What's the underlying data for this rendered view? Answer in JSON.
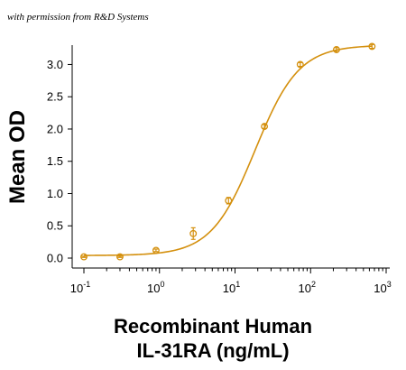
{
  "credit": "with permission from R&D Systems",
  "chart_data": {
    "type": "scatter",
    "title": "",
    "xlabel_lines": [
      "Recombinant Human",
      "IL-31RA (ng/mL)"
    ],
    "ylabel": "Mean OD",
    "x_scale": "log",
    "xlim": [
      0.1,
      1000
    ],
    "ylim": [
      0,
      3.3
    ],
    "x_ticks": [
      {
        "value": 0.1,
        "base": "10",
        "exp": "-1"
      },
      {
        "value": 1,
        "base": "10",
        "exp": "0"
      },
      {
        "value": 10,
        "base": "10",
        "exp": "1"
      },
      {
        "value": 100,
        "base": "10",
        "exp": "2"
      },
      {
        "value": 1000,
        "base": "10",
        "exp": "3"
      }
    ],
    "y_ticks": [
      "0.0",
      "0.5",
      "1.0",
      "1.5",
      "2.0",
      "2.5",
      "3.0"
    ],
    "series": [
      {
        "color": "#D4900E",
        "points": [
          {
            "x": 0.1,
            "y": 0.02,
            "err": 0.01
          },
          {
            "x": 0.3,
            "y": 0.02,
            "err": 0.01
          },
          {
            "x": 0.9,
            "y": 0.12,
            "err": 0.02
          },
          {
            "x": 2.8,
            "y": 0.38,
            "err": 0.09
          },
          {
            "x": 8.2,
            "y": 0.89,
            "err": 0.05
          },
          {
            "x": 24.5,
            "y": 2.04,
            "err": 0.03
          },
          {
            "x": 73,
            "y": 3.0,
            "err": 0.03
          },
          {
            "x": 220,
            "y": 3.23,
            "err": 0.03
          },
          {
            "x": 650,
            "y": 3.28,
            "err": 0.03
          }
        ],
        "fit": {
          "model": "4PL",
          "bottom": 0.04,
          "top": 3.3,
          "ec50": 18.4,
          "hill": 1.5
        }
      }
    ],
    "grid": false,
    "legend": "none"
  }
}
